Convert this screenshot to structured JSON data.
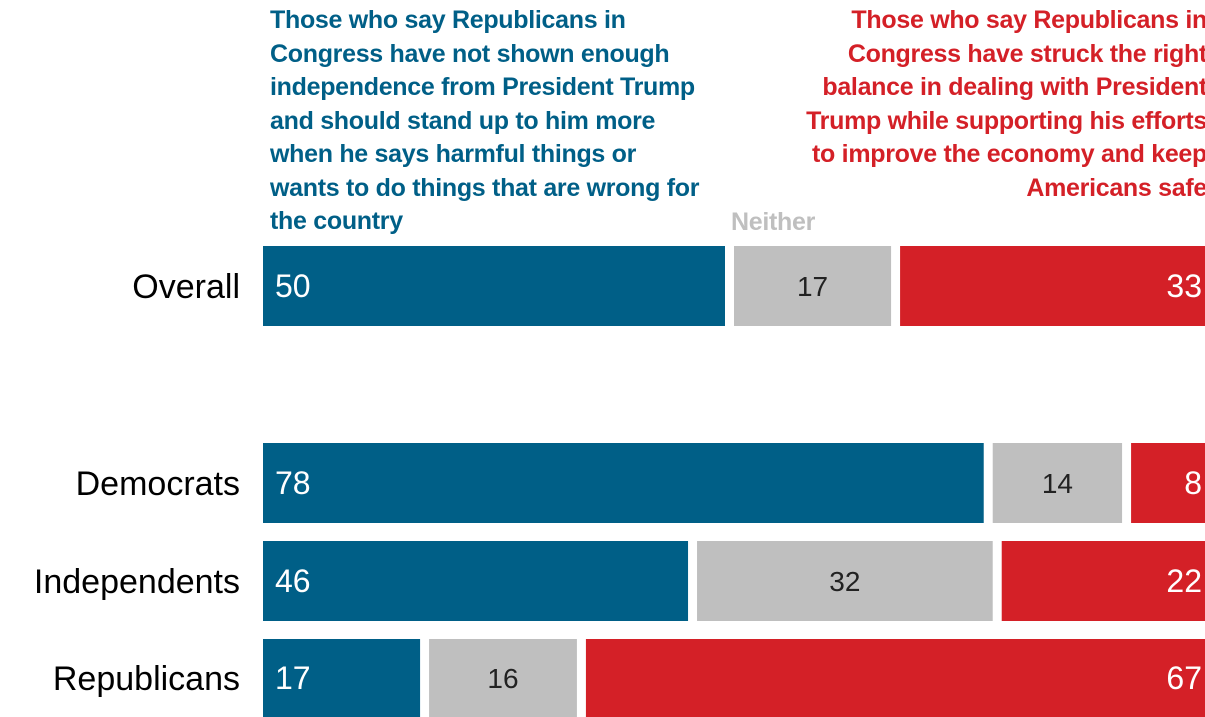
{
  "colors": {
    "left": "#005f87",
    "neither": "#bfbfbf",
    "right": "#d42027",
    "text_light": "#ffffff",
    "text_dark": "#222222",
    "label": "#000000"
  },
  "headers": {
    "left": "Those who say Republicans in Congress have not shown enough independence from President Trump and should stand up to him more when he says harmful things or wants to do things that are wrong for the country",
    "middle": "Neither",
    "right": "Those who say Republicans in Congress have struck the right balance in dealing with President Trump while supporting his efforts to improve the economy and keep Americans safe"
  },
  "chart_data": {
    "type": "bar",
    "orientation": "horizontal",
    "stacked": true,
    "categories": [
      "Overall",
      "Democrats",
      "Independents",
      "Republicans"
    ],
    "series": [
      {
        "key": "left",
        "values": [
          50,
          78,
          46,
          17
        ]
      },
      {
        "key": "neither",
        "values": [
          17,
          14,
          32,
          16
        ]
      },
      {
        "key": "right",
        "values": [
          33,
          8,
          22,
          67
        ]
      }
    ],
    "xlim": [
      0,
      100
    ],
    "grid": false,
    "legend": "top"
  }
}
